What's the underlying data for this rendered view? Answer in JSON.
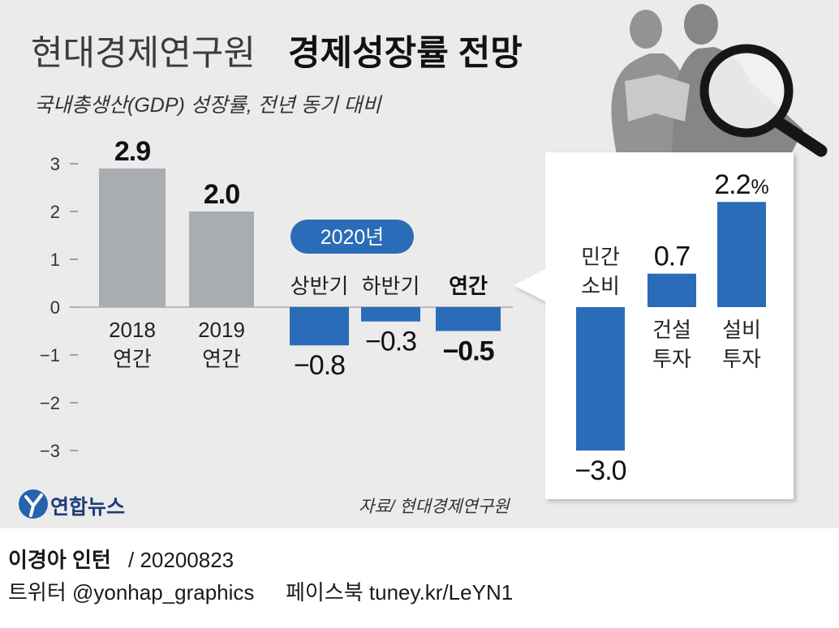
{
  "chart_data": [
    {
      "type": "bar",
      "title": {
        "source_name": "현대경제연구원",
        "text": "경제성장률 전망"
      },
      "subtitle": "국내총생산(GDP) 성장률, 전년 동기 대비",
      "ylim": [
        -3,
        3
      ],
      "yticks": [
        3,
        2,
        1,
        0,
        -1,
        -2,
        -3
      ],
      "ytick_labels": [
        "3",
        "2",
        "1",
        "0",
        "−1",
        "−2",
        "−3"
      ],
      "groups": [
        {
          "color": "#a9acb0",
          "bars": [
            {
              "category": [
                "2018",
                "연간"
              ],
              "value": 2.9,
              "value_label": "2.9"
            },
            {
              "category": [
                "2019",
                "연간"
              ],
              "value": 2.0,
              "value_label": "2.0"
            }
          ]
        },
        {
          "label": "2020년",
          "color": "#2a6cb8",
          "bars": [
            {
              "category": [
                "상반기"
              ],
              "value": -0.8,
              "value_label": "−0.8"
            },
            {
              "category": [
                "하반기"
              ],
              "value": -0.3,
              "value_label": "−0.3"
            },
            {
              "category": [
                "연간"
              ],
              "value": -0.5,
              "value_label": "−0.5"
            }
          ]
        }
      ]
    },
    {
      "type": "bar",
      "color": "#2a6cb8",
      "bars": [
        {
          "category": [
            "민간",
            "소비"
          ],
          "value": -3.0,
          "value_label": "−3.0"
        },
        {
          "category": [
            "건설",
            "투자"
          ],
          "value": 0.7,
          "value_label": "0.7"
        },
        {
          "category": [
            "설비",
            "투자"
          ],
          "value": 2.2,
          "value_label": "2.2",
          "unit": "%"
        }
      ]
    }
  ],
  "source": "자료/ 현대경제연구원",
  "logo": {
    "icon": "yonhap-logo-icon",
    "text": "연합뉴스",
    "color": "#2563ad"
  },
  "illustration": {
    "icon": "businessmen-magnifier-icon"
  },
  "footer": {
    "author": "이경아 인턴",
    "date": "/ 20200823",
    "twitter": "트위터 @yonhap_graphics",
    "facebook": "페이스북 tuney.kr/LeYN1"
  },
  "colors": {
    "background": "#ebebeb",
    "panel": "#ffffff"
  }
}
